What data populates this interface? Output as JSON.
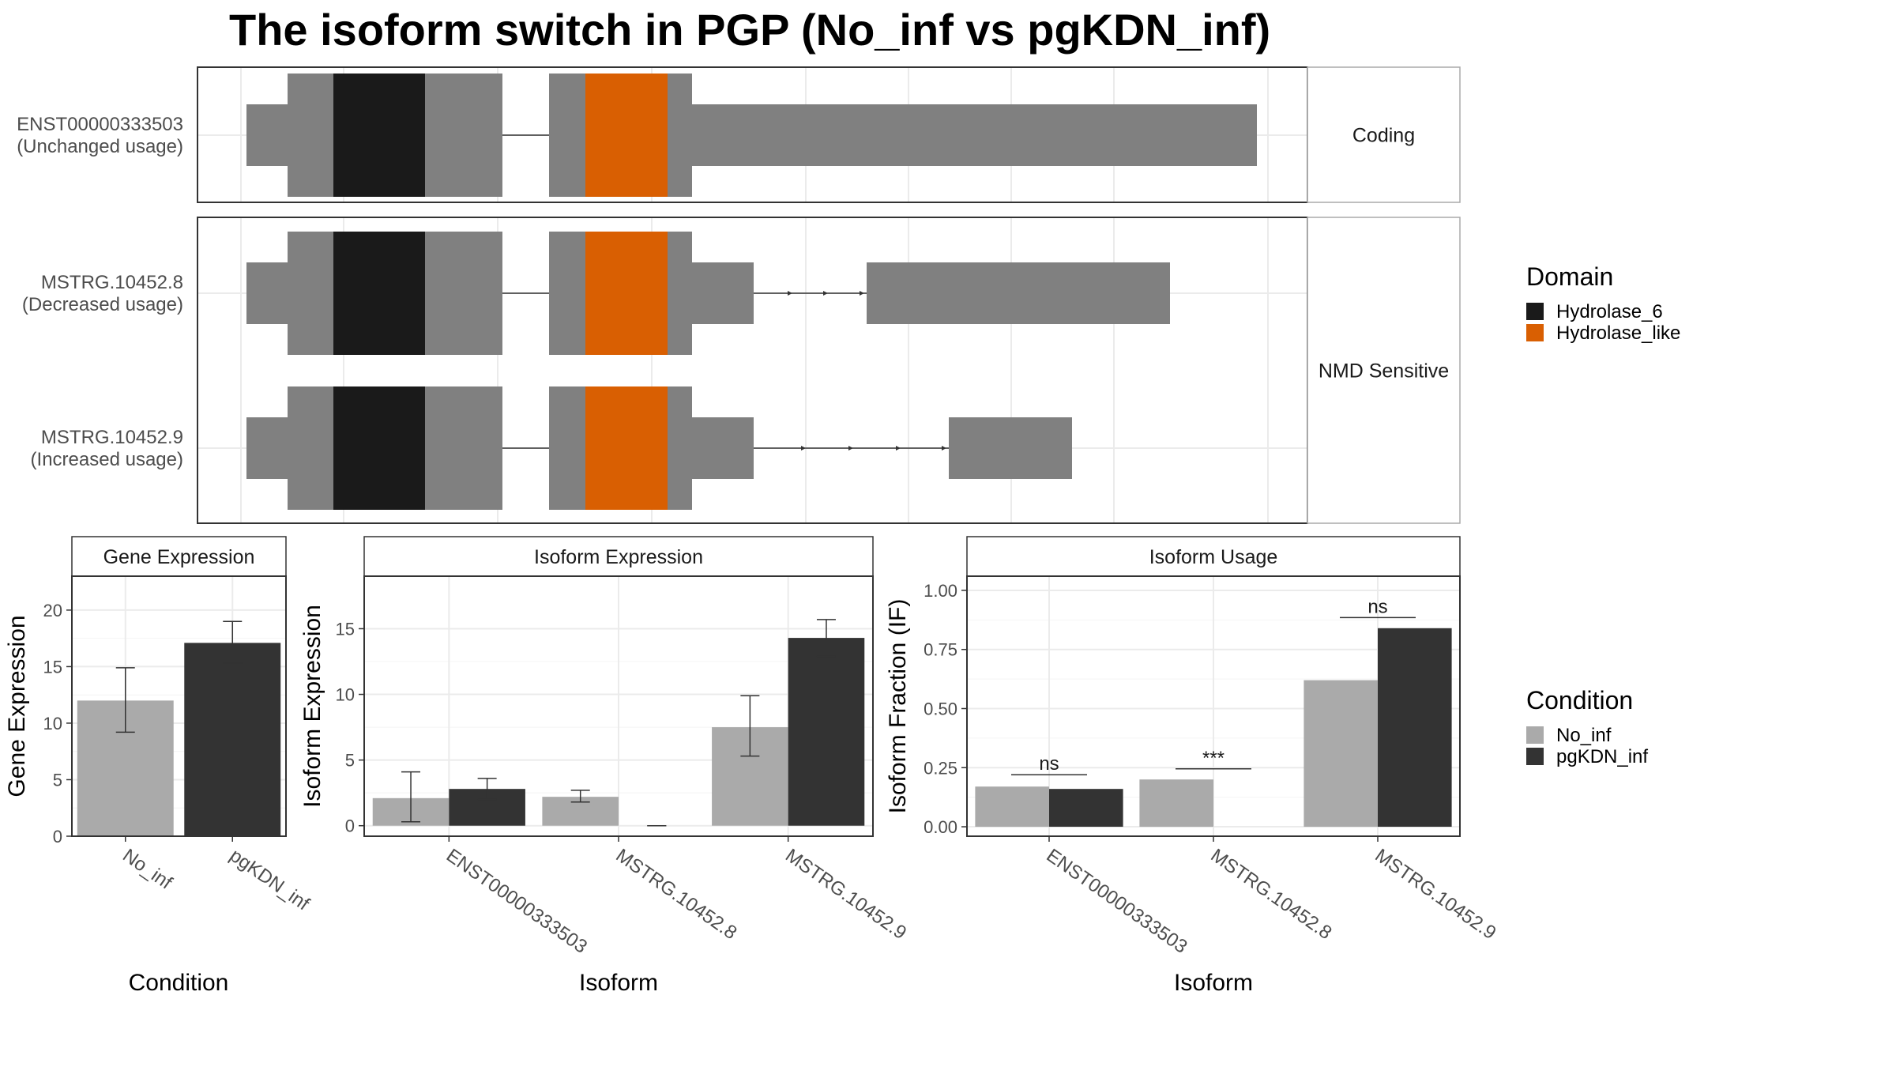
{
  "figure": {
    "title": "The isoform switch in PGP (No_inf vs pgKDN_inf)"
  },
  "colors": {
    "exon": "#808080",
    "hydrolase_6": "#1a1a1a",
    "hydrolase_like": "#d95f02",
    "no_inf": "#aaaaaa",
    "pgkdn_inf": "#333333",
    "grid": "#ebebeb",
    "strip": "#ffffff"
  },
  "structure": {
    "groups": [
      {
        "label": "Coding",
        "isoforms": [
          {
            "id": "ENST00000333503",
            "usage": "(Unchanged usage)"
          }
        ]
      },
      {
        "label": "NMD Sensitive",
        "isoforms": [
          {
            "id": "MSTRG.10452.8",
            "usage": "(Decreased usage)"
          },
          {
            "id": "MSTRG.10452.9",
            "usage": "(Increased usage)"
          }
        ]
      }
    ],
    "legend": {
      "title": "Domain",
      "items": [
        {
          "label": "Hydrolase_6",
          "color_key": "hydrolase_6"
        },
        {
          "label": "Hydrolase_like",
          "color_key": "hydrolase_like"
        }
      ]
    }
  },
  "condition_legend": {
    "title": "Condition",
    "items": [
      {
        "label": "No_inf",
        "color_key": "no_inf"
      },
      {
        "label": "pgKDN_inf",
        "color_key": "pgkdn_inf"
      }
    ]
  },
  "chart_data": [
    {
      "type": "bar",
      "title": "Gene Expression",
      "xlabel": "Condition",
      "ylabel": "Gene Expression",
      "categories": [
        "No_inf",
        "pgKDN_inf"
      ],
      "values": [
        12.0,
        17.1
      ],
      "error_low": [
        9.2,
        15.3
      ],
      "error_high": [
        14.9,
        19.0
      ],
      "ylim": [
        0,
        23
      ],
      "yticks": [
        0,
        5,
        10,
        15,
        20
      ],
      "grid": true
    },
    {
      "type": "bar",
      "title": "Isoform Expression",
      "xlabel": "Isoform",
      "ylabel": "Isoform Expression",
      "categories": [
        "ENST00000333503",
        "MSTRG.10452.8",
        "MSTRG.10452.9"
      ],
      "series": [
        {
          "name": "No_inf",
          "values": [
            2.1,
            2.2,
            7.5
          ],
          "error_low": [
            0.3,
            1.8,
            5.3
          ],
          "error_high": [
            4.1,
            2.7,
            9.9
          ]
        },
        {
          "name": "pgKDN_inf",
          "values": [
            2.8,
            0.0,
            14.3
          ],
          "error_low": [
            2.0,
            0.0,
            12.9
          ],
          "error_high": [
            3.6,
            0.0,
            15.7
          ]
        }
      ],
      "ylim": [
        -0.8,
        19
      ],
      "yticks": [
        0,
        5,
        10,
        15
      ],
      "grid": true
    },
    {
      "type": "bar",
      "title": "Isoform Usage",
      "xlabel": "Isoform",
      "ylabel": "Isoform Fraction (IF)",
      "categories": [
        "ENST00000333503",
        "MSTRG.10452.8",
        "MSTRG.10452.9"
      ],
      "series": [
        {
          "name": "No_inf",
          "values": [
            0.17,
            0.2,
            0.62
          ]
        },
        {
          "name": "pgKDN_inf",
          "values": [
            0.16,
            0.0,
            0.84
          ]
        }
      ],
      "significance": [
        "ns",
        "***",
        "ns"
      ],
      "significance_y": [
        0.22,
        0.245,
        0.885
      ],
      "ylim": [
        -0.04,
        1.06
      ],
      "yticks": [
        "0.00",
        "0.25",
        "0.50",
        "0.75",
        "1.00"
      ],
      "grid": true
    }
  ]
}
